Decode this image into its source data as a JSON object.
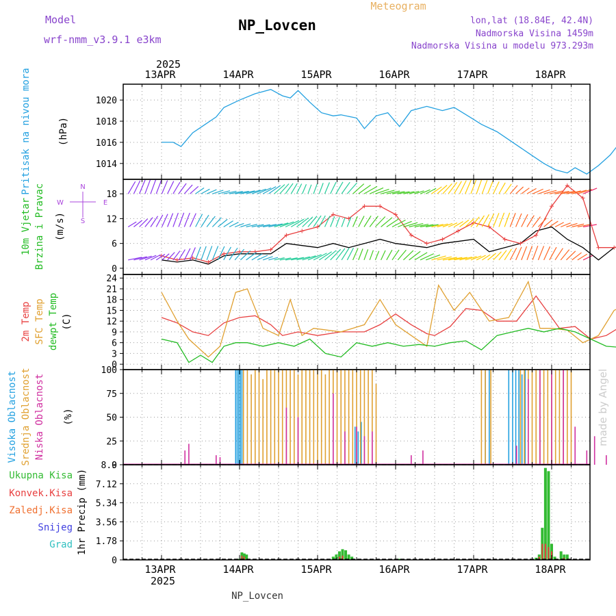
{
  "header": {
    "model_label": "Model",
    "model_name": "wrf-nmm_v3.9.1 e3km",
    "station": "NP_Lovcen",
    "product": "Meteogram",
    "coords": "lon,lat (18.84E, 42.4N)",
    "elevation": "Nadmorska Visina 1459m",
    "model_elevation": "Nadmorska Visina u modelu 973.293m",
    "footer_station": "NP_Lovcen",
    "watermark": "made by Angel"
  },
  "colors": {
    "pressure": "#22a0e0",
    "wind_label": "#22bb22",
    "t2m": "#e84040",
    "tsfc": "#e0a030",
    "dewpt": "#22bb22",
    "cloud_high": "#22a0e0",
    "cloud_mid": "#e0a030",
    "cloud_low": "#d030a0",
    "precip_total": "#33bb33",
    "precip_conv": "#e84040",
    "precip_frz": "#f07030",
    "snow": "#4040e0",
    "hail": "#30c0c0",
    "title": "#8844cc",
    "meteogram": "#e8b060",
    "wind_dir": "#aa44dd"
  },
  "time_axis": {
    "year": "2025",
    "days": [
      "13APR",
      "14APR",
      "15APR",
      "16APR",
      "17APR",
      "18APR"
    ]
  },
  "chart_data": [
    {
      "type": "line",
      "title": "Pritisak na nivou mora",
      "ylabel": "(hPa)",
      "ylim": [
        1012.5,
        1021.5
      ],
      "yticks": [
        "1014",
        "1016",
        "1018",
        "1020"
      ],
      "x_range_days": [
        0,
        6
      ],
      "series": [
        {
          "name": "Pritisak",
          "x": [
            0,
            0.15,
            0.25,
            0.4,
            0.5,
            0.7,
            0.8,
            1.0,
            1.2,
            1.4,
            1.55,
            1.65,
            1.75,
            1.9,
            2.05,
            2.2,
            2.3,
            2.5,
            2.6,
            2.75,
            2.9,
            3.05,
            3.2,
            3.4,
            3.6,
            3.75,
            3.95,
            4.1,
            4.3,
            4.5,
            4.7,
            4.9,
            5.05,
            5.2,
            5.3,
            5.45,
            5.6,
            5.75,
            5.9,
            6.0
          ],
          "values": [
            1016.0,
            1016.0,
            1015.6,
            1016.9,
            1017.4,
            1018.4,
            1019.3,
            1020.0,
            1020.6,
            1021.0,
            1020.4,
            1020.2,
            1020.9,
            1019.8,
            1018.8,
            1018.5,
            1018.6,
            1018.3,
            1017.3,
            1018.5,
            1018.8,
            1017.5,
            1019.0,
            1019.4,
            1019.0,
            1019.3,
            1018.4,
            1017.7,
            1017.0,
            1016.0,
            1015.0,
            1014.0,
            1013.4,
            1013.1,
            1013.6,
            1013.0,
            1013.8,
            1014.8,
            1016.2,
            1016.4
          ]
        }
      ]
    },
    {
      "type": "line",
      "title": "10m Vjetar",
      "subtitle": "Brzina i Pravac",
      "ylabel": "(m/s)",
      "ylim": [
        -1.5,
        21.5
      ],
      "yticks": [
        "0",
        "6",
        "12",
        "18"
      ],
      "direction_legend": [
        "N",
        "S",
        "W",
        "E"
      ],
      "barb_rows_ms": [
        2,
        10,
        18
      ],
      "series": [
        {
          "name": "Brzina",
          "x": [
            0,
            0.2,
            0.4,
            0.6,
            0.8,
            1.0,
            1.2,
            1.4,
            1.6,
            1.8,
            2.0,
            2.2,
            2.4,
            2.6,
            2.8,
            3.0,
            3.2,
            3.4,
            3.6,
            3.8,
            4.0,
            4.2,
            4.4,
            4.6,
            4.8,
            5.0,
            5.2,
            5.4,
            5.6,
            5.8,
            6.0
          ],
          "values": [
            2,
            1.5,
            2,
            1,
            3,
            3.5,
            3.5,
            3.5,
            6,
            5.5,
            5,
            6,
            5,
            6,
            7,
            6,
            5.5,
            5,
            6,
            6.5,
            7,
            4,
            5,
            6,
            9,
            10,
            7,
            5,
            2,
            5,
            5.5
          ]
        },
        {
          "name": "Udari",
          "x": [
            0,
            0.2,
            0.4,
            0.6,
            0.8,
            1.0,
            1.2,
            1.4,
            1.6,
            1.8,
            2.0,
            2.2,
            2.4,
            2.6,
            2.8,
            3.0,
            3.2,
            3.4,
            3.6,
            3.8,
            4.0,
            4.2,
            4.4,
            4.6,
            4.8,
            5.0,
            5.2,
            5.4,
            5.6,
            5.8,
            6.0
          ],
          "values": [
            3,
            2,
            2.5,
            1.5,
            3.5,
            4,
            4,
            4.5,
            8,
            9,
            10,
            13,
            12,
            15,
            15,
            13,
            8,
            6,
            7,
            9,
            11,
            10,
            7,
            6,
            8,
            15,
            20,
            17,
            5,
            5,
            6
          ]
        }
      ]
    },
    {
      "type": "line",
      "title": "2m Temp",
      "subtitle": "SFC Temp",
      "subtitle2": "dewpt Temp",
      "ylabel": "(C)",
      "ylim": [
        -1.5,
        25
      ],
      "yticks": [
        "0",
        "3",
        "6",
        "9",
        "12",
        "15",
        "18",
        "21",
        "24"
      ],
      "series": [
        {
          "name": "2m Temp",
          "x": [
            0,
            0.2,
            0.4,
            0.6,
            0.8,
            1.0,
            1.2,
            1.4,
            1.55,
            1.75,
            2.0,
            2.3,
            2.6,
            2.8,
            3.0,
            3.2,
            3.4,
            3.5,
            3.7,
            3.9,
            4.1,
            4.3,
            4.55,
            4.8,
            5.0,
            5.1,
            5.3,
            5.5,
            5.7,
            5.85,
            6.0
          ],
          "values": [
            13,
            11.5,
            9,
            8,
            11.5,
            13,
            13.5,
            11,
            8,
            9,
            8,
            9,
            9,
            11,
            14,
            11,
            8.5,
            8,
            10.5,
            15.5,
            15,
            12,
            12,
            19,
            13,
            10,
            10.5,
            7,
            8,
            10,
            10
          ]
        },
        {
          "name": "SFC Temp",
          "x": [
            0,
            0.2,
            0.35,
            0.6,
            0.75,
            0.95,
            1.1,
            1.3,
            1.5,
            1.65,
            1.8,
            1.95,
            2.3,
            2.6,
            2.8,
            3.0,
            3.2,
            3.4,
            3.55,
            3.75,
            3.95,
            4.2,
            4.45,
            4.7,
            4.85,
            5.0,
            5.2,
            5.4,
            5.6,
            5.8,
            6.0
          ],
          "values": [
            20,
            12,
            7,
            2,
            5,
            20,
            21,
            10,
            8,
            18,
            8,
            10,
            9,
            11,
            18,
            11,
            8,
            5,
            22,
            15,
            20,
            12,
            13,
            23,
            10,
            10,
            9.5,
            6,
            8,
            15,
            17
          ]
        },
        {
          "name": "dewpt Temp",
          "x": [
            0,
            0.2,
            0.35,
            0.5,
            0.65,
            0.8,
            0.95,
            1.1,
            1.3,
            1.5,
            1.7,
            1.9,
            2.1,
            2.3,
            2.5,
            2.7,
            2.9,
            3.1,
            3.3,
            3.5,
            3.7,
            3.9,
            4.1,
            4.3,
            4.5,
            4.7,
            4.9,
            5.1,
            5.3,
            5.5,
            5.7,
            6.0
          ],
          "values": [
            7,
            6,
            0.5,
            2.5,
            0.5,
            5,
            6,
            6,
            5,
            6,
            5,
            7,
            3,
            2,
            6,
            5,
            6,
            5,
            5.5,
            5,
            6,
            6.5,
            4,
            8,
            9,
            10,
            9,
            10,
            9,
            7,
            5,
            4.5
          ]
        }
      ]
    },
    {
      "type": "bar",
      "title": "Visoka Oblacnost",
      "subtitle": "Srednja Oblacnost",
      "subtitle2": "Niska Oblacnost",
      "ylabel": "(%)",
      "ylim": [
        0,
        100
      ],
      "yticks": [
        "0",
        "25",
        "50",
        "75",
        "100"
      ],
      "series": [
        {
          "name": "Visoka",
          "x": [
            0.95,
            0.97,
            0.99,
            1.01,
            1.03,
            2.48,
            2.52,
            2.56,
            4.15,
            4.2,
            4.45,
            4.5,
            4.54,
            4.58,
            4.62,
            4.66
          ],
          "values": [
            100,
            100,
            100,
            100,
            100,
            40,
            35,
            45,
            100,
            100,
            100,
            100,
            100,
            100,
            95,
            100
          ]
        },
        {
          "name": "Srednja",
          "x": [
            1.05,
            1.1,
            1.15,
            1.2,
            1.25,
            1.3,
            1.35,
            1.4,
            1.45,
            1.5,
            1.55,
            1.6,
            1.65,
            1.7,
            1.75,
            1.8,
            1.85,
            1.9,
            1.95,
            2.0,
            2.05,
            2.1,
            2.15,
            2.2,
            2.25,
            2.3,
            2.35,
            2.4,
            2.45,
            2.5,
            2.55,
            2.6,
            2.65,
            2.7,
            2.75,
            4.1,
            4.15,
            4.22,
            4.6,
            4.65,
            4.7,
            4.75,
            4.8,
            4.85,
            4.9,
            4.95,
            5.0,
            5.05,
            5.1,
            5.15,
            5.2,
            5.25,
            5.98
          ],
          "values": [
            100,
            100,
            95,
            100,
            100,
            90,
            100,
            100,
            100,
            100,
            100,
            100,
            100,
            100,
            95,
            100,
            100,
            100,
            100,
            100,
            100,
            95,
            100,
            100,
            100,
            100,
            100,
            100,
            100,
            100,
            100,
            100,
            100,
            100,
            85,
            100,
            100,
            100,
            100,
            100,
            100,
            100,
            100,
            100,
            100,
            100,
            95,
            100,
            100,
            100,
            100,
            100,
            80
          ]
        },
        {
          "name": "Niska",
          "x": [
            0.3,
            0.35,
            0.7,
            0.75,
            1.6,
            1.75,
            2.2,
            2.35,
            2.5,
            2.6,
            2.7,
            3.2,
            3.35,
            4.55,
            4.7,
            4.85,
            5.0,
            5.15,
            5.3,
            5.45,
            5.55,
            5.7,
            5.9
          ],
          "values": [
            15,
            22,
            10,
            8,
            60,
            50,
            75,
            35,
            40,
            30,
            35,
            10,
            15,
            20,
            90,
            100,
            100,
            100,
            40,
            15,
            30,
            10,
            30
          ]
        }
      ]
    },
    {
      "type": "bar",
      "title": "Ukupna Kisa",
      "legend": [
        "Ukupna Kisa",
        "Konvek.Kisa",
        "Zaledj.Kisa",
        "Snijeg",
        "Grad"
      ],
      "ylabel": "1hr Precip (mm)",
      "ylim": [
        0,
        8.9
      ],
      "yticks": [
        "0",
        "1.78",
        "3.56",
        "5.34",
        "7.12",
        "8.9"
      ],
      "series": [
        {
          "name": "Ukupna Kisa",
          "x": [
            1.0,
            1.03,
            1.06,
            1.09,
            2.2,
            2.24,
            2.28,
            2.32,
            2.36,
            2.4,
            2.44,
            3.0,
            3.05,
            4.8,
            4.84,
            4.88,
            4.92,
            4.96,
            5.0,
            5.04,
            5.12,
            5.16,
            5.2
          ],
          "values": [
            0.1,
            0.7,
            0.6,
            0.5,
            0.3,
            0.5,
            0.8,
            1.0,
            0.9,
            0.5,
            0.3,
            0.1,
            0.1,
            0.2,
            0.5,
            3.0,
            8.6,
            8.3,
            1.5,
            0.3,
            0.8,
            0.5,
            0.5
          ]
        },
        {
          "name": "Konvek.Kisa",
          "x": [
            1.03,
            1.06,
            2.28,
            2.32,
            4.84,
            4.88,
            4.92,
            4.96,
            5.0,
            5.16
          ],
          "values": [
            0.4,
            0.3,
            0.3,
            0.4,
            0.3,
            1.5,
            1.5,
            1.2,
            0.8,
            0.2
          ]
        }
      ]
    }
  ]
}
